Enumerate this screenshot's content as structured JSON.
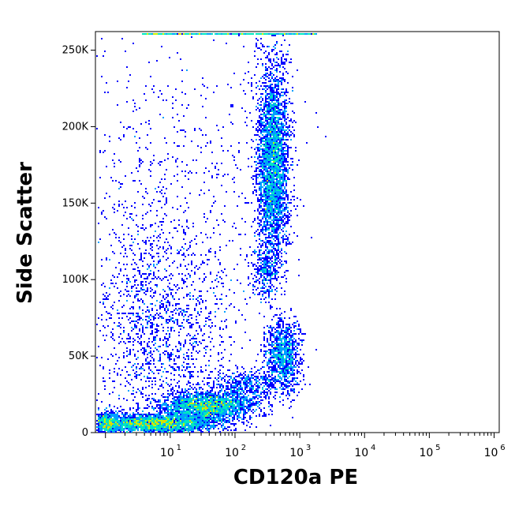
{
  "chart_data": {
    "type": "scatter",
    "style": "flow-cytometry density dot plot",
    "xlabel": "CD120a PE",
    "ylabel": "Side Scatter",
    "x_scale": "log",
    "xlim": [
      0.7,
      1200000
    ],
    "x_ticks": [
      {
        "value": 10,
        "base": "10",
        "exp": "1"
      },
      {
        "value": 100,
        "base": "10",
        "exp": "2"
      },
      {
        "value": 1000,
        "base": "10",
        "exp": "3"
      },
      {
        "value": 10000,
        "base": "10",
        "exp": "4"
      },
      {
        "value": 100000,
        "base": "10",
        "exp": "5"
      },
      {
        "value": 1000000,
        "base": "10",
        "exp": "6"
      }
    ],
    "y_scale": "linear",
    "ylim": [
      0,
      262144
    ],
    "y_ticks": [
      {
        "value": 0,
        "label": "0"
      },
      {
        "value": 50000,
        "label": "50K"
      },
      {
        "value": 100000,
        "label": "100K"
      },
      {
        "value": 150000,
        "label": "150K"
      },
      {
        "value": 200000,
        "label": "200K"
      },
      {
        "value": 250000,
        "label": "250K"
      }
    ],
    "colormap": [
      "#0000ff",
      "#00a0ff",
      "#00e8c0",
      "#c8f000",
      "#ffc000",
      "#ff2000"
    ],
    "populations": [
      {
        "name": "low CD120a, low SSC",
        "x_center": 80,
        "y_center": 8000,
        "density": "highest"
      },
      {
        "name": "CD120a+ low SSC",
        "x_center": 2200,
        "y_center": 45000,
        "density": "medium"
      },
      {
        "name": "CD120a+ high SSC",
        "x_center": 1500,
        "y_center": 170000,
        "density": "high"
      },
      {
        "name": "scattered events",
        "x_center": 60,
        "y_center": 60000,
        "density": "sparse"
      }
    ]
  }
}
